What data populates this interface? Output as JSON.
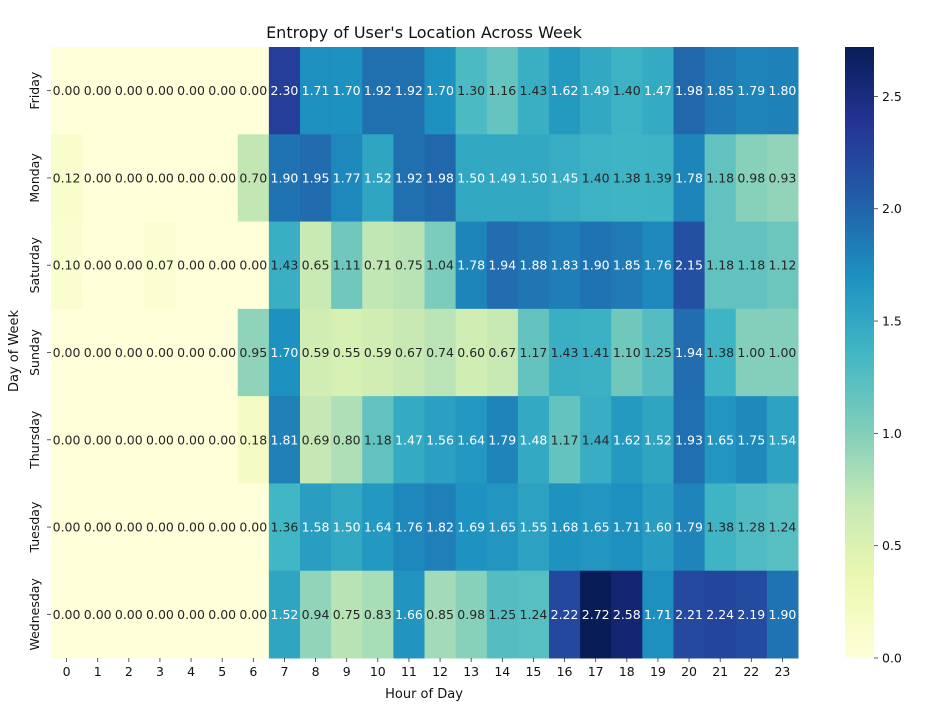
{
  "chart_data": {
    "type": "heatmap",
    "title": "Entropy of User's Location Across Week",
    "xlabel": "Hour of Day",
    "ylabel": "Day of Week",
    "x": [
      "0",
      "1",
      "2",
      "3",
      "4",
      "5",
      "6",
      "7",
      "8",
      "9",
      "10",
      "11",
      "12",
      "13",
      "14",
      "15",
      "16",
      "17",
      "18",
      "19",
      "20",
      "21",
      "22",
      "23"
    ],
    "y": [
      "Friday",
      "Monday",
      "Saturday",
      "Sunday",
      "Thursday",
      "Tuesday",
      "Wednesday"
    ],
    "values": [
      [
        0.0,
        0.0,
        0.0,
        0.0,
        0.0,
        0.0,
        0.0,
        2.3,
        1.71,
        1.7,
        1.92,
        1.92,
        1.7,
        1.3,
        1.16,
        1.43,
        1.62,
        1.49,
        1.4,
        1.47,
        1.98,
        1.85,
        1.79,
        1.8
      ],
      [
        0.12,
        0.0,
        0.0,
        0.0,
        0.0,
        0.0,
        0.7,
        1.9,
        1.95,
        1.77,
        1.52,
        1.92,
        1.98,
        1.5,
        1.49,
        1.5,
        1.45,
        1.4,
        1.38,
        1.39,
        1.78,
        1.18,
        0.98,
        0.93
      ],
      [
        0.1,
        0.0,
        0.0,
        0.07,
        0.0,
        0.0,
        0.0,
        1.43,
        0.65,
        1.11,
        0.71,
        0.75,
        1.04,
        1.78,
        1.94,
        1.88,
        1.83,
        1.9,
        1.85,
        1.76,
        2.15,
        1.18,
        1.18,
        1.12
      ],
      [
        0.0,
        0.0,
        0.0,
        0.0,
        0.0,
        0.0,
        0.95,
        1.7,
        0.59,
        0.55,
        0.59,
        0.67,
        0.74,
        0.6,
        0.67,
        1.17,
        1.43,
        1.41,
        1.1,
        1.25,
        1.94,
        1.38,
        1.0,
        1.0
      ],
      [
        0.0,
        0.0,
        0.0,
        0.0,
        0.0,
        0.0,
        0.18,
        1.81,
        0.69,
        0.8,
        1.18,
        1.47,
        1.56,
        1.64,
        1.79,
        1.48,
        1.17,
        1.44,
        1.62,
        1.52,
        1.93,
        1.65,
        1.75,
        1.54
      ],
      [
        0.0,
        0.0,
        0.0,
        0.0,
        0.0,
        0.0,
        0.0,
        1.36,
        1.58,
        1.5,
        1.64,
        1.76,
        1.82,
        1.69,
        1.65,
        1.55,
        1.68,
        1.65,
        1.71,
        1.6,
        1.79,
        1.38,
        1.28,
        1.24
      ],
      [
        0.0,
        0.0,
        0.0,
        0.0,
        0.0,
        0.0,
        0.0,
        1.52,
        0.94,
        0.75,
        0.83,
        1.66,
        0.85,
        0.98,
        1.25,
        1.24,
        2.22,
        2.72,
        2.58,
        1.71,
        2.21,
        2.24,
        2.19,
        1.9
      ]
    ],
    "vmin": 0.0,
    "vmax": 2.72,
    "colormap": "YlGnBu",
    "colorbar": {
      "ticks": [
        0.0,
        0.5,
        1.0,
        1.5,
        2.0,
        2.5
      ],
      "tick_labels": [
        "0.0",
        "0.5",
        "1.0",
        "1.5",
        "2.0",
        "2.5"
      ]
    },
    "annotation_format": "2 decimals",
    "grid": false
  }
}
